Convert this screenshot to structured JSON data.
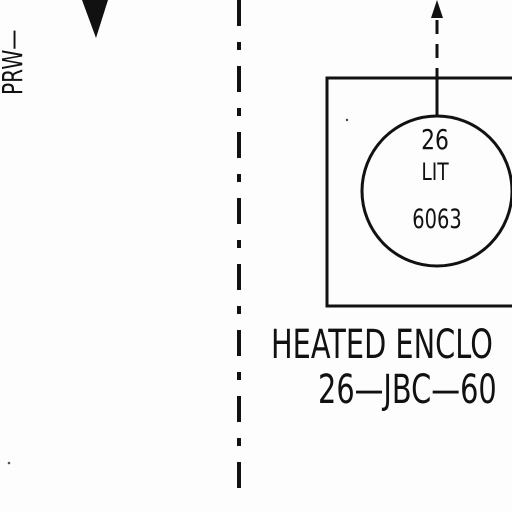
{
  "line_label": "PRW—",
  "instrument": {
    "loop_number": "26",
    "function_code": "LIT",
    "tag_number": "6063"
  },
  "enclosure": {
    "label_line1": "HEATED ENCLO",
    "label_line2": "26—JBC—60"
  },
  "colors": {
    "ink": "#111111",
    "background": "#fdfdfd"
  }
}
